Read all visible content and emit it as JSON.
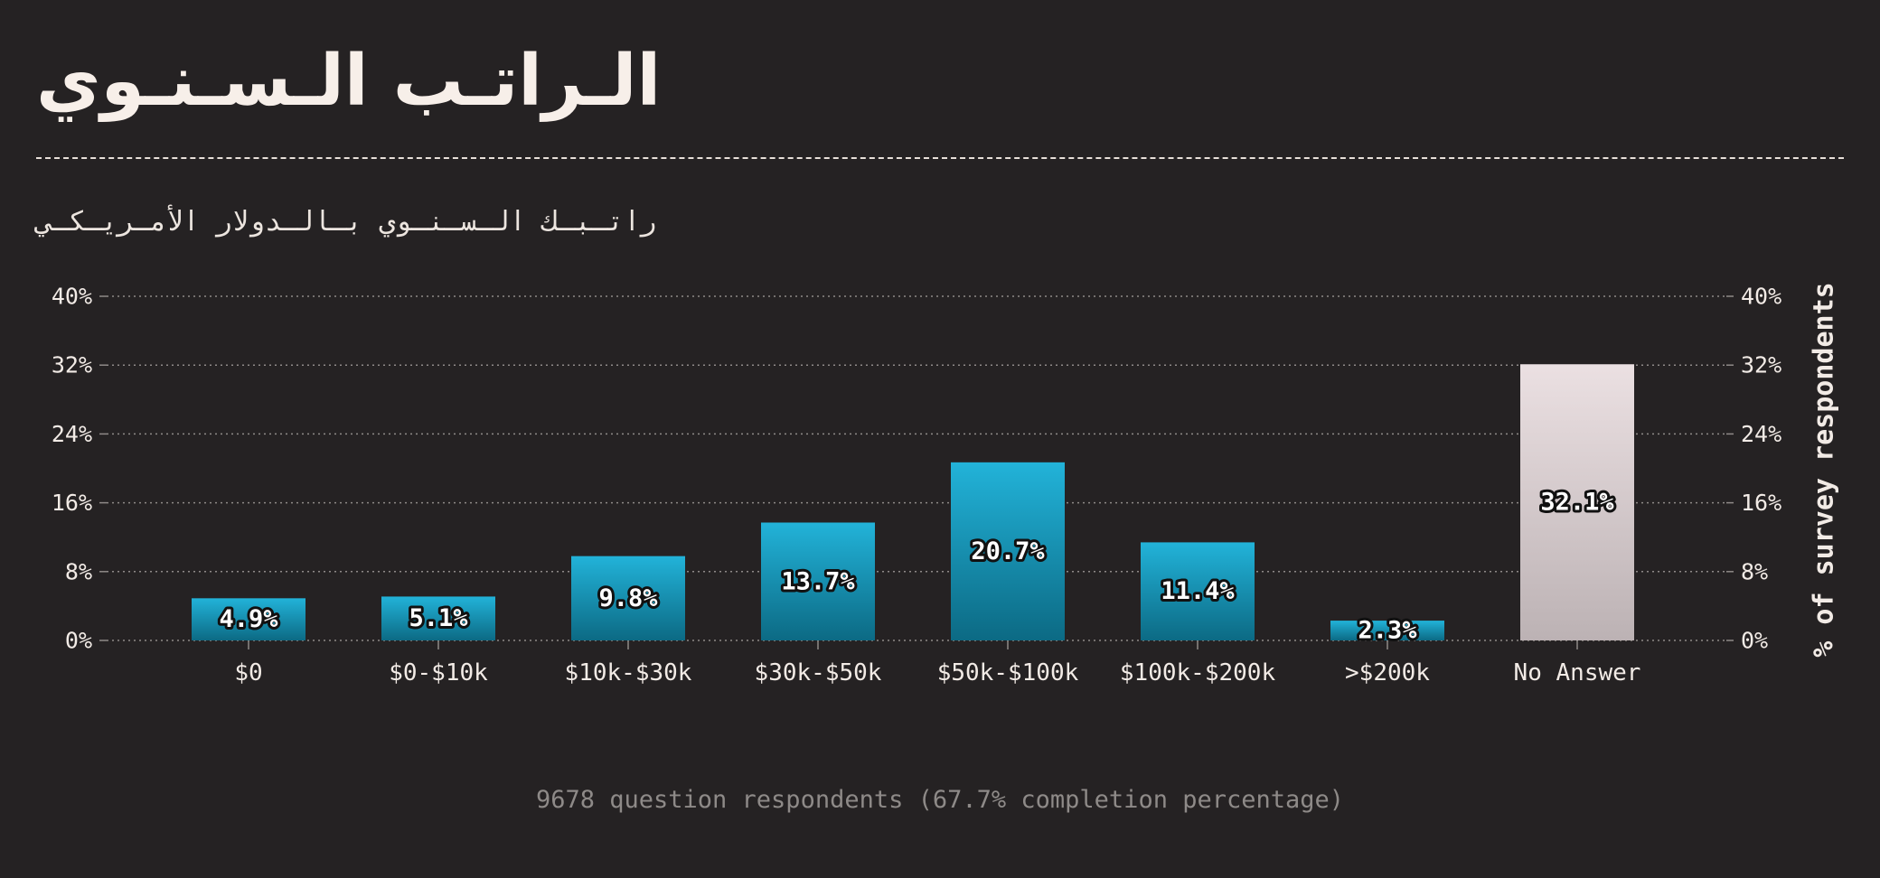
{
  "title": "الـراتـب الـسـنـوي",
  "subtitle": "راتـبـك الـسـنـوي بـالـدولار الأمـريـكـي",
  "footnote": "9678 question respondents (67.7% completion percentage)",
  "colors": {
    "background": "#252223",
    "bar_top": "#22b3d9",
    "bar_bottom": "#0c6a84",
    "highlight_top": "#ebe0e2",
    "highlight_bottom": "#bcb2b4",
    "grid": "#8f8a88",
    "text": "#f2ebe6"
  },
  "chart_data": {
    "type": "bar",
    "categories": [
      "$0",
      "$0-$10k",
      "$10k-$30k",
      "$30k-$50k",
      "$50k-$100k",
      "$100k-$200k",
      ">$200k",
      "No Answer"
    ],
    "values": [
      4.9,
      5.1,
      9.8,
      13.7,
      20.7,
      11.4,
      2.3,
      32.1
    ],
    "value_labels": [
      "4.9%",
      "5.1%",
      "9.8%",
      "13.7%",
      "20.7%",
      "11.4%",
      "2.3%",
      "32.1%"
    ],
    "highlight_category": "No Answer",
    "ylim": [
      0,
      40
    ],
    "y_ticks": [
      0,
      8,
      16,
      24,
      32,
      40
    ],
    "y_tick_labels": [
      "0%",
      "8%",
      "16%",
      "24%",
      "32%",
      "40%"
    ],
    "ylabel": "% of survey respondents",
    "xlabel": "",
    "grid": true
  }
}
